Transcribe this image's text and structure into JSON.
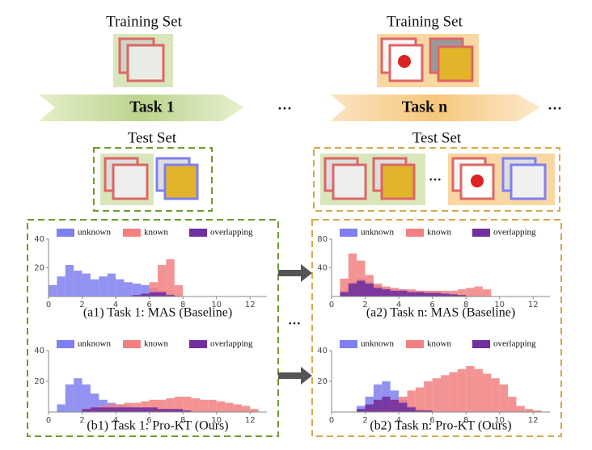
{
  "diagram": {
    "training_left": "Training Set",
    "training_right": "Training Set",
    "task_left": "Task 1",
    "task_right": "Task n",
    "ellipsis_top_mid": "···",
    "ellipsis_top_right": "···",
    "test_left": "Test Set",
    "test_right": "Test Set",
    "ellipsis_test": "···",
    "ellipsis_panels": "···"
  },
  "chart_data": [
    {
      "type": "histogram",
      "title": "(a1) Task 1: MAS (Baseline)",
      "bins": [
        0,
        0.5,
        1,
        1.5,
        2,
        2.5,
        3,
        3.5,
        4,
        4.5,
        5,
        5.5,
        6,
        6.5,
        7,
        7.5,
        8,
        8.5,
        9,
        9.5,
        10,
        10.5,
        11,
        11.5,
        12,
        12.5
      ],
      "xlim": [
        0,
        13
      ],
      "xticks": [
        0,
        2,
        4,
        6,
        8,
        10,
        12
      ],
      "ylim": [
        0,
        40
      ],
      "yticks": [
        20,
        40
      ],
      "series": [
        {
          "name": "unknown",
          "color": "#7f7ff0",
          "values": [
            8,
            14,
            22,
            18,
            16,
            12,
            14,
            16,
            12,
            10,
            9,
            8,
            6,
            4,
            2,
            0,
            0,
            0,
            0,
            0,
            0,
            0,
            0,
            0,
            0
          ]
        },
        {
          "name": "known",
          "color": "#f28080",
          "values": [
            0,
            0,
            0,
            0,
            0,
            0,
            0,
            0,
            0,
            0,
            0,
            1,
            10,
            22,
            26,
            8,
            0,
            0,
            0,
            0,
            0,
            0,
            0,
            0,
            0
          ]
        },
        {
          "name": "overlapping",
          "color": "#7030a0",
          "values": [
            0,
            0,
            0,
            0,
            0,
            0,
            0,
            0,
            0,
            0,
            1,
            2,
            3,
            3,
            1,
            0,
            0,
            0,
            0,
            0,
            0,
            0,
            0,
            0,
            0
          ]
        }
      ]
    },
    {
      "type": "histogram",
      "title": "(a2) Task n: MAS (Baseline)",
      "bins": [
        0,
        0.5,
        1,
        1.5,
        2,
        2.5,
        3,
        3.5,
        4,
        4.5,
        5,
        5.5,
        6,
        6.5,
        7,
        7.5,
        8,
        8.5,
        9,
        9.5,
        10,
        10.5,
        11,
        11.5,
        12,
        12.5
      ],
      "xlim": [
        0,
        13
      ],
      "xticks": [
        0,
        2,
        4,
        6,
        8,
        10,
        12
      ],
      "ylim": [
        0,
        80
      ],
      "yticks": [
        40,
        80
      ],
      "series": [
        {
          "name": "unknown",
          "color": "#7f7ff0",
          "values": [
            0,
            8,
            20,
            25,
            20,
            15,
            12,
            10,
            10,
            8,
            8,
            6,
            6,
            4,
            4,
            2,
            0,
            0,
            0,
            0,
            0,
            0,
            0,
            0,
            0
          ]
        },
        {
          "name": "known",
          "color": "#f28080",
          "values": [
            0,
            25,
            60,
            50,
            30,
            18,
            14,
            12,
            10,
            10,
            8,
            8,
            8,
            8,
            8,
            10,
            12,
            14,
            10,
            0,
            0,
            0,
            0,
            0,
            0
          ]
        },
        {
          "name": "overlapping",
          "color": "#7030a0",
          "values": [
            0,
            6,
            18,
            22,
            18,
            12,
            10,
            8,
            8,
            6,
            6,
            5,
            5,
            4,
            3,
            2,
            0,
            0,
            0,
            0,
            0,
            0,
            0,
            0,
            0
          ]
        }
      ]
    },
    {
      "type": "histogram",
      "title": "(b1) Task 1: Pro-KT (Ours)",
      "bins": [
        0,
        0.5,
        1,
        1.5,
        2,
        2.5,
        3,
        3.5,
        4,
        4.5,
        5,
        5.5,
        6,
        6.5,
        7,
        7.5,
        8,
        8.5,
        9,
        9.5,
        10,
        10.5,
        11,
        11.5,
        12,
        12.5
      ],
      "xlim": [
        0,
        13
      ],
      "xticks": [
        0,
        2,
        4,
        6,
        8,
        10,
        12
      ],
      "ylim": [
        0,
        40
      ],
      "yticks": [
        20,
        40
      ],
      "series": [
        {
          "name": "unknown",
          "color": "#7f7ff0",
          "values": [
            0,
            5,
            18,
            22,
            18,
            12,
            8,
            6,
            5,
            4,
            3,
            2,
            1,
            0,
            0,
            0,
            0,
            0,
            0,
            0,
            0,
            0,
            0,
            0,
            0
          ]
        },
        {
          "name": "known",
          "color": "#f28080",
          "values": [
            0,
            0,
            0,
            0,
            2,
            3,
            4,
            5,
            5,
            6,
            6,
            7,
            8,
            8,
            9,
            10,
            10,
            9,
            8,
            8,
            7,
            6,
            5,
            4,
            2
          ]
        },
        {
          "name": "overlapping",
          "color": "#7030a0",
          "values": [
            0,
            0,
            0,
            0,
            2,
            3,
            3,
            3,
            3,
            3,
            3,
            3,
            3,
            2,
            2,
            2,
            1,
            0,
            0,
            0,
            0,
            0,
            0,
            0,
            0
          ]
        }
      ]
    },
    {
      "type": "histogram",
      "title": "(b2) Task n: Pro-KT (Ours)",
      "bins": [
        0,
        0.5,
        1,
        1.5,
        2,
        2.5,
        3,
        3.5,
        4,
        4.5,
        5,
        5.5,
        6,
        6.5,
        7,
        7.5,
        8,
        8.5,
        9,
        9.5,
        10,
        10.5,
        11,
        11.5,
        12,
        12.5
      ],
      "xlim": [
        0,
        13
      ],
      "xticks": [
        0,
        2,
        4,
        6,
        8,
        10,
        12
      ],
      "ylim": [
        0,
        40
      ],
      "yticks": [
        20,
        40
      ],
      "series": [
        {
          "name": "unknown",
          "color": "#7f7ff0",
          "values": [
            0,
            0,
            0,
            4,
            10,
            18,
            20,
            14,
            8,
            4,
            2,
            1,
            0,
            0,
            0,
            0,
            0,
            0,
            0,
            0,
            0,
            0,
            0,
            0,
            0
          ]
        },
        {
          "name": "known",
          "color": "#f28080",
          "values": [
            0,
            0,
            0,
            0,
            2,
            3,
            5,
            8,
            10,
            14,
            16,
            20,
            22,
            24,
            26,
            28,
            30,
            28,
            25,
            22,
            18,
            10,
            4,
            2,
            1
          ]
        },
        {
          "name": "overlapping",
          "color": "#7030a0",
          "values": [
            0,
            0,
            0,
            2,
            5,
            8,
            10,
            8,
            6,
            3,
            1,
            1,
            0,
            0,
            0,
            0,
            0,
            0,
            0,
            0,
            0,
            0,
            0,
            0,
            0
          ]
        }
      ]
    }
  ]
}
